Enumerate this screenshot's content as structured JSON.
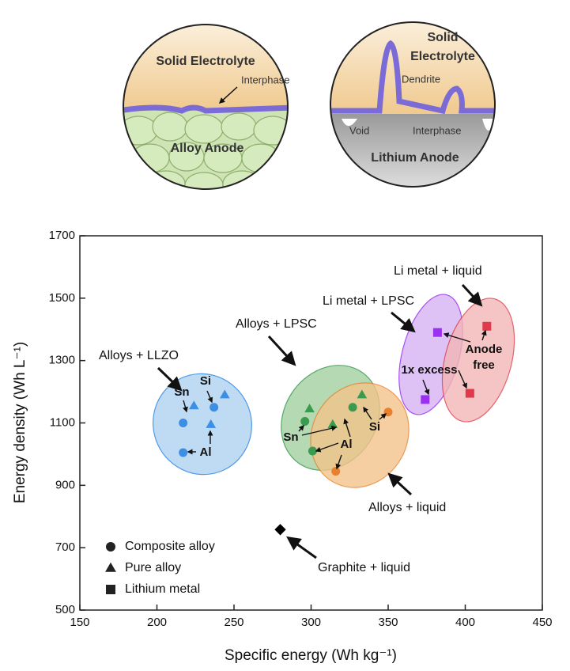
{
  "diagram": {
    "left": {
      "electrolyte": "Solid Electrolyte",
      "interphase": "Interphase",
      "anode": "Alloy Anode"
    },
    "right": {
      "electrolyte": [
        "Solid",
        "Electrolyte"
      ],
      "dendrite": "Dendrite",
      "void": "Void",
      "interphase": "Interphase",
      "anode": "Lithium Anode"
    }
  },
  "chart_data": {
    "type": "scatter",
    "x_label": "Specific energy (Wh kg⁻¹)",
    "y_label": "Energy density (Wh L⁻¹)",
    "xlim": [
      150,
      450
    ],
    "xticks": [
      150,
      200,
      250,
      300,
      350,
      400,
      450
    ],
    "ylim": [
      500,
      1700
    ],
    "yticks": [
      500,
      700,
      900,
      1100,
      1300,
      1500,
      1700
    ],
    "series": [
      {
        "color": "#3d8fe3",
        "marker": "circle",
        "x": [
          217,
          217,
          237
        ],
        "y": [
          1100,
          1005,
          1150
        ]
      },
      {
        "color": "#3d8fe3",
        "marker": "triangle",
        "x": [
          224,
          244,
          235
        ],
        "y": [
          1155,
          1190,
          1095
        ]
      },
      {
        "color": "#3a9a4e",
        "marker": "circle",
        "x": [
          296,
          301,
          327
        ],
        "y": [
          1105,
          1010,
          1150
        ]
      },
      {
        "color": "#3a9a4e",
        "marker": "triangle",
        "x": [
          299,
          333,
          314
        ],
        "y": [
          1145,
          1190,
          1095
        ]
      },
      {
        "color": "#e8812e",
        "marker": "circle",
        "x": [
          316,
          350
        ],
        "y": [
          945,
          1135
        ]
      },
      {
        "color": "#9b30f0",
        "marker": "square",
        "x": [
          382,
          374
        ],
        "y": [
          1390,
          1175
        ]
      },
      {
        "color": "#e03a4a",
        "marker": "square",
        "x": [
          414,
          403
        ],
        "y": [
          1410,
          1195
        ]
      },
      {
        "color": "#000000",
        "marker": "diamond",
        "x": [
          280
        ],
        "y": [
          758
        ]
      }
    ],
    "legend": [
      {
        "label": "Composite alloy",
        "marker": "circle"
      },
      {
        "label": "Pure alloy",
        "marker": "triangle"
      },
      {
        "label": "Lithium metal",
        "marker": "square"
      }
    ],
    "annotations": {
      "llzo": "Alloys + LLZO",
      "lpsc": "Alloys + LPSC",
      "liquid": "Alloys + liquid",
      "graphite": "Graphite + liquid",
      "li_lpsc": "Li metal + LPSC",
      "li_liquid": "Li metal + liquid",
      "excess": "1x excess",
      "anode_free": [
        "Anode",
        "free"
      ],
      "sn1": "Sn",
      "si1": "Si",
      "al1": "Al",
      "sn2": "Sn",
      "si2": "Si",
      "al2": "Al"
    }
  }
}
